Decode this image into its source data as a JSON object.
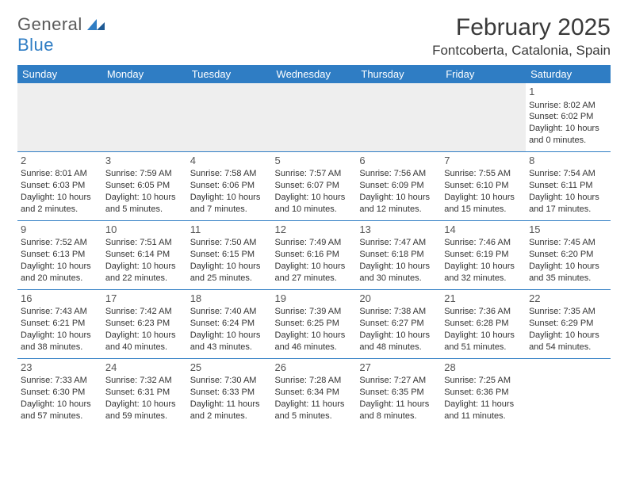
{
  "brand": {
    "part1": "General",
    "part2": "Blue"
  },
  "title": "February 2025",
  "location": "Fontcoberta, Catalonia, Spain",
  "colors": {
    "accent": "#2f7dc4",
    "header_text": "#ffffff",
    "text": "#333333",
    "muted_bg": "#eeeeee",
    "brand_gray": "#5a5a5a"
  },
  "calendar": {
    "type": "table",
    "day_headers": [
      "Sunday",
      "Monday",
      "Tuesday",
      "Wednesday",
      "Thursday",
      "Friday",
      "Saturday"
    ],
    "weeks": [
      [
        null,
        null,
        null,
        null,
        null,
        null,
        {
          "n": "1",
          "sr": "Sunrise: 8:02 AM",
          "ss": "Sunset: 6:02 PM",
          "dl": "Daylight: 10 hours and 0 minutes."
        }
      ],
      [
        {
          "n": "2",
          "sr": "Sunrise: 8:01 AM",
          "ss": "Sunset: 6:03 PM",
          "dl": "Daylight: 10 hours and 2 minutes."
        },
        {
          "n": "3",
          "sr": "Sunrise: 7:59 AM",
          "ss": "Sunset: 6:05 PM",
          "dl": "Daylight: 10 hours and 5 minutes."
        },
        {
          "n": "4",
          "sr": "Sunrise: 7:58 AM",
          "ss": "Sunset: 6:06 PM",
          "dl": "Daylight: 10 hours and 7 minutes."
        },
        {
          "n": "5",
          "sr": "Sunrise: 7:57 AM",
          "ss": "Sunset: 6:07 PM",
          "dl": "Daylight: 10 hours and 10 minutes."
        },
        {
          "n": "6",
          "sr": "Sunrise: 7:56 AM",
          "ss": "Sunset: 6:09 PM",
          "dl": "Daylight: 10 hours and 12 minutes."
        },
        {
          "n": "7",
          "sr": "Sunrise: 7:55 AM",
          "ss": "Sunset: 6:10 PM",
          "dl": "Daylight: 10 hours and 15 minutes."
        },
        {
          "n": "8",
          "sr": "Sunrise: 7:54 AM",
          "ss": "Sunset: 6:11 PM",
          "dl": "Daylight: 10 hours and 17 minutes."
        }
      ],
      [
        {
          "n": "9",
          "sr": "Sunrise: 7:52 AM",
          "ss": "Sunset: 6:13 PM",
          "dl": "Daylight: 10 hours and 20 minutes."
        },
        {
          "n": "10",
          "sr": "Sunrise: 7:51 AM",
          "ss": "Sunset: 6:14 PM",
          "dl": "Daylight: 10 hours and 22 minutes."
        },
        {
          "n": "11",
          "sr": "Sunrise: 7:50 AM",
          "ss": "Sunset: 6:15 PM",
          "dl": "Daylight: 10 hours and 25 minutes."
        },
        {
          "n": "12",
          "sr": "Sunrise: 7:49 AM",
          "ss": "Sunset: 6:16 PM",
          "dl": "Daylight: 10 hours and 27 minutes."
        },
        {
          "n": "13",
          "sr": "Sunrise: 7:47 AM",
          "ss": "Sunset: 6:18 PM",
          "dl": "Daylight: 10 hours and 30 minutes."
        },
        {
          "n": "14",
          "sr": "Sunrise: 7:46 AM",
          "ss": "Sunset: 6:19 PM",
          "dl": "Daylight: 10 hours and 32 minutes."
        },
        {
          "n": "15",
          "sr": "Sunrise: 7:45 AM",
          "ss": "Sunset: 6:20 PM",
          "dl": "Daylight: 10 hours and 35 minutes."
        }
      ],
      [
        {
          "n": "16",
          "sr": "Sunrise: 7:43 AM",
          "ss": "Sunset: 6:21 PM",
          "dl": "Daylight: 10 hours and 38 minutes."
        },
        {
          "n": "17",
          "sr": "Sunrise: 7:42 AM",
          "ss": "Sunset: 6:23 PM",
          "dl": "Daylight: 10 hours and 40 minutes."
        },
        {
          "n": "18",
          "sr": "Sunrise: 7:40 AM",
          "ss": "Sunset: 6:24 PM",
          "dl": "Daylight: 10 hours and 43 minutes."
        },
        {
          "n": "19",
          "sr": "Sunrise: 7:39 AM",
          "ss": "Sunset: 6:25 PM",
          "dl": "Daylight: 10 hours and 46 minutes."
        },
        {
          "n": "20",
          "sr": "Sunrise: 7:38 AM",
          "ss": "Sunset: 6:27 PM",
          "dl": "Daylight: 10 hours and 48 minutes."
        },
        {
          "n": "21",
          "sr": "Sunrise: 7:36 AM",
          "ss": "Sunset: 6:28 PM",
          "dl": "Daylight: 10 hours and 51 minutes."
        },
        {
          "n": "22",
          "sr": "Sunrise: 7:35 AM",
          "ss": "Sunset: 6:29 PM",
          "dl": "Daylight: 10 hours and 54 minutes."
        }
      ],
      [
        {
          "n": "23",
          "sr": "Sunrise: 7:33 AM",
          "ss": "Sunset: 6:30 PM",
          "dl": "Daylight: 10 hours and 57 minutes."
        },
        {
          "n": "24",
          "sr": "Sunrise: 7:32 AM",
          "ss": "Sunset: 6:31 PM",
          "dl": "Daylight: 10 hours and 59 minutes."
        },
        {
          "n": "25",
          "sr": "Sunrise: 7:30 AM",
          "ss": "Sunset: 6:33 PM",
          "dl": "Daylight: 11 hours and 2 minutes."
        },
        {
          "n": "26",
          "sr": "Sunrise: 7:28 AM",
          "ss": "Sunset: 6:34 PM",
          "dl": "Daylight: 11 hours and 5 minutes."
        },
        {
          "n": "27",
          "sr": "Sunrise: 7:27 AM",
          "ss": "Sunset: 6:35 PM",
          "dl": "Daylight: 11 hours and 8 minutes."
        },
        {
          "n": "28",
          "sr": "Sunrise: 7:25 AM",
          "ss": "Sunset: 6:36 PM",
          "dl": "Daylight: 11 hours and 11 minutes."
        },
        null
      ]
    ]
  }
}
